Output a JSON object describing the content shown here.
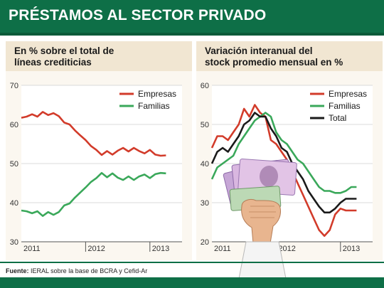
{
  "header": {
    "title": "PRÉSTAMOS AL SECTOR PRIVADO"
  },
  "chart_data": [
    {
      "type": "line",
      "title_lines": [
        "En % sobre el total de",
        "líneas crediticias"
      ],
      "ylim": [
        30,
        70
      ],
      "yticks": [
        30,
        40,
        50,
        60,
        70
      ],
      "xlim": [
        0,
        30
      ],
      "x_ticks": [
        {
          "label": "2011",
          "x": 0
        },
        {
          "label": "2012",
          "x": 12
        },
        {
          "label": "2013",
          "x": 24
        }
      ],
      "grid": true,
      "legend_position": "top-right",
      "series": [
        {
          "name": "Empresas",
          "color": "#d23b2a",
          "x": [
            0,
            1,
            2,
            3,
            4,
            5,
            6,
            7,
            8,
            9,
            10,
            11,
            12,
            13,
            14,
            15,
            16,
            17,
            18,
            19,
            20,
            21,
            22,
            23,
            24,
            25,
            26,
            27
          ],
          "values": [
            61.7,
            62.0,
            62.6,
            62.0,
            63.2,
            62.4,
            62.9,
            62.1,
            60.5,
            60.0,
            58.5,
            57.2,
            56.0,
            54.5,
            53.5,
            52.2,
            53.2,
            52.3,
            53.3,
            54.0,
            53.1,
            54.0,
            53.2,
            52.6,
            53.5,
            52.3,
            52.0,
            52.1
          ]
        },
        {
          "name": "Familias",
          "color": "#3aa85a",
          "x": [
            0,
            1,
            2,
            3,
            4,
            5,
            6,
            7,
            8,
            9,
            10,
            11,
            12,
            13,
            14,
            15,
            16,
            17,
            18,
            19,
            20,
            21,
            22,
            23,
            24,
            25,
            26,
            27
          ],
          "values": [
            38.0,
            37.8,
            37.3,
            37.8,
            36.6,
            37.6,
            36.9,
            37.6,
            39.3,
            39.8,
            41.3,
            42.6,
            43.9,
            45.3,
            46.3,
            47.6,
            46.5,
            47.5,
            46.4,
            45.8,
            46.7,
            45.8,
            46.7,
            47.2,
            46.3,
            47.3,
            47.6,
            47.5
          ]
        }
      ]
    },
    {
      "type": "line",
      "title_lines": [
        "Variación interanual del",
        "stock promedio mensual en %"
      ],
      "ylim": [
        20,
        60
      ],
      "yticks": [
        20,
        30,
        40,
        50,
        60
      ],
      "xlim": [
        0,
        30
      ],
      "x_ticks": [
        {
          "label": "2011",
          "x": 0
        },
        {
          "label": "2012",
          "x": 12
        },
        {
          "label": "2013",
          "x": 24
        }
      ],
      "grid": true,
      "legend_position": "top-right",
      "series": [
        {
          "name": "Empresas",
          "color": "#d23b2a",
          "x": [
            0,
            1,
            2,
            3,
            4,
            5,
            6,
            7,
            8,
            9,
            10,
            11,
            12,
            13,
            14,
            15,
            16,
            17,
            18,
            19,
            20,
            21,
            22,
            23,
            24,
            25,
            26,
            27
          ],
          "values": [
            44,
            47,
            47,
            46,
            48,
            50,
            54,
            52,
            55,
            53,
            52,
            46,
            45,
            43,
            41,
            38,
            35,
            32,
            29,
            26,
            23,
            21.5,
            23,
            27,
            28.5,
            28,
            28,
            28
          ]
        },
        {
          "name": "Familias",
          "color": "#3aa85a",
          "x": [
            0,
            1,
            2,
            3,
            4,
            5,
            6,
            7,
            8,
            9,
            10,
            11,
            12,
            13,
            14,
            15,
            16,
            17,
            18,
            19,
            20,
            21,
            22,
            23,
            24,
            25,
            26,
            27
          ],
          "values": [
            36,
            39,
            40,
            41,
            42,
            45,
            47,
            49,
            51,
            52,
            53,
            52,
            48,
            46,
            45,
            43,
            41,
            40,
            38,
            36,
            34,
            33,
            33,
            32.5,
            32.5,
            33,
            34,
            34
          ]
        },
        {
          "name": "Total",
          "color": "#1a1a1a",
          "x": [
            0,
            1,
            2,
            3,
            4,
            5,
            6,
            7,
            8,
            9,
            10,
            11,
            12,
            13,
            14,
            15,
            16,
            17,
            18,
            19,
            20,
            21,
            22,
            23,
            24,
            25,
            26,
            27
          ],
          "values": [
            40,
            43,
            44,
            43,
            45,
            47,
            50,
            51,
            53,
            52,
            52,
            49,
            47,
            44,
            43,
            40,
            38,
            36,
            33,
            31,
            29,
            27.5,
            27.5,
            28.5,
            30,
            31,
            31,
            31
          ]
        }
      ]
    }
  ],
  "footer": {
    "source_label": "Fuente:",
    "source_text": " IERAL sobre la base de BCRA y Cefid-Ar"
  }
}
